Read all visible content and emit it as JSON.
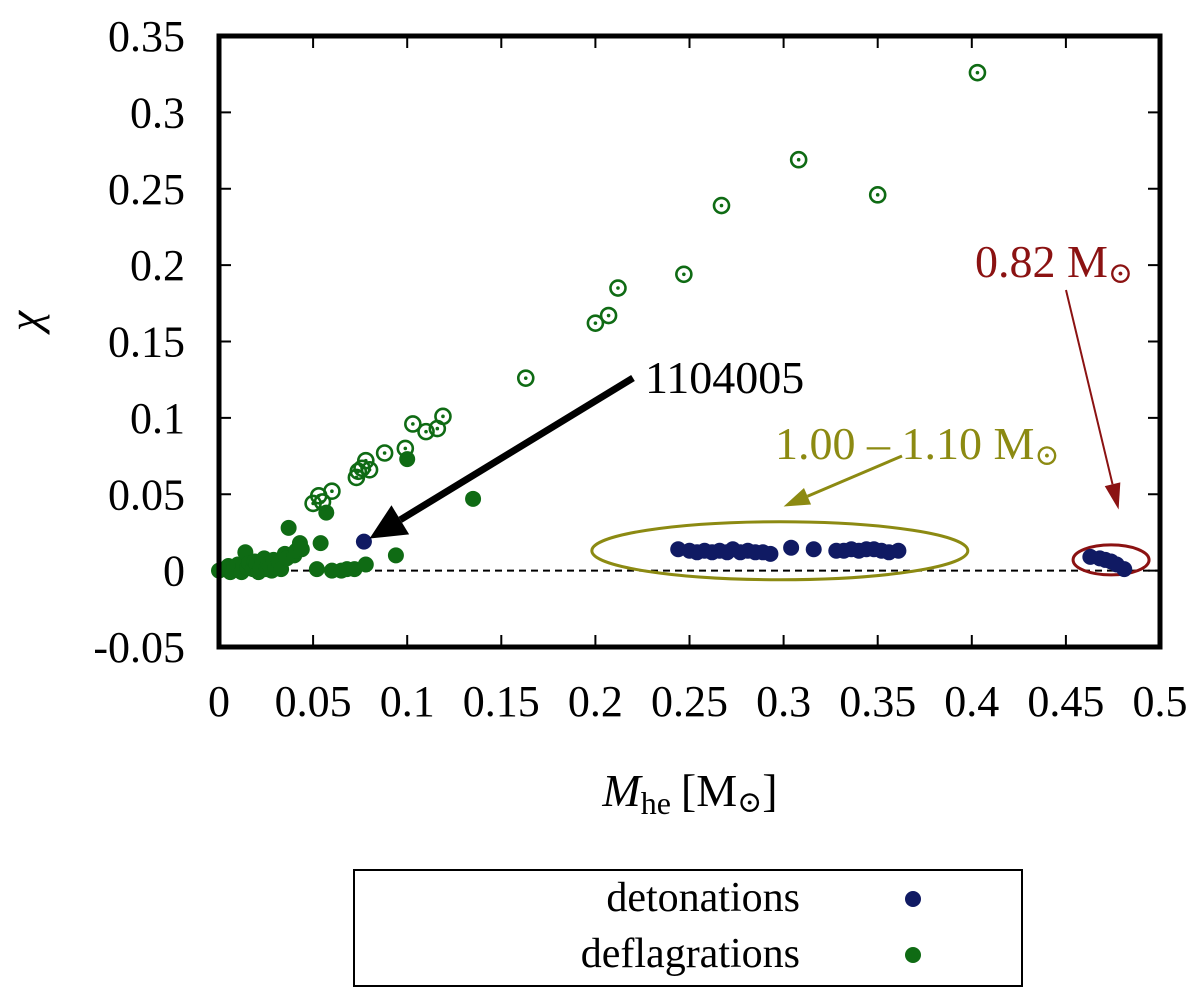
{
  "chart_data": {
    "type": "scatter",
    "title": "",
    "xlabel_main": "M",
    "xlabel_sub": "he",
    "xlabel_unit": "[M",
    "xlabel_sun": "⊙",
    "xlabel_close": "]",
    "ylabel": "χ",
    "xlim": [
      0,
      0.5
    ],
    "ylim": [
      -0.05,
      0.35
    ],
    "x_ticks": [
      0,
      0.05,
      0.1,
      0.15,
      0.2,
      0.25,
      0.3,
      0.35,
      0.4,
      0.45,
      0.5
    ],
    "x_tick_labels": [
      "0",
      "0.05",
      "0.1",
      "0.15",
      "0.2",
      "0.25",
      "0.3",
      "0.35",
      "0.4",
      "0.45",
      "0.5"
    ],
    "y_ticks": [
      -0.05,
      0,
      0.05,
      0.1,
      0.15,
      0.2,
      0.25,
      0.3,
      0.35
    ],
    "y_tick_labels": [
      "-0.05",
      "0",
      "0.05",
      "0.1",
      "0.15",
      "0.2",
      "0.25",
      "0.3",
      "0.35"
    ],
    "zero_line": true,
    "colors": {
      "detonations": "#101a63",
      "deflagrations": "#0f6b14",
      "range_annotation": "#8c8a12",
      "mass_annotation": "#8b1212",
      "arrow": "#000000"
    },
    "series": [
      {
        "name": "deflagrations",
        "marker": "filled",
        "points": [
          [
            0.0,
            0.0
          ],
          [
            0.003,
            0.001
          ],
          [
            0.005,
            0.003
          ],
          [
            0.006,
            -0.001
          ],
          [
            0.008,
            0.002
          ],
          [
            0.01,
            0.004
          ],
          [
            0.011,
            0.0
          ],
          [
            0.012,
            -0.001
          ],
          [
            0.013,
            0.003
          ],
          [
            0.014,
            0.012
          ],
          [
            0.015,
            0.002
          ],
          [
            0.016,
            0.005
          ],
          [
            0.018,
            0.001
          ],
          [
            0.019,
            0.006
          ],
          [
            0.02,
            0.004
          ],
          [
            0.021,
            -0.001
          ],
          [
            0.022,
            0.002
          ],
          [
            0.023,
            0.006
          ],
          [
            0.024,
            0.008
          ],
          [
            0.025,
            0.001
          ],
          [
            0.026,
            0.004
          ],
          [
            0.027,
            0.003
          ],
          [
            0.028,
            0.0
          ],
          [
            0.029,
            0.007
          ],
          [
            0.03,
            0.002
          ],
          [
            0.032,
            0.005
          ],
          [
            0.033,
            0.001
          ],
          [
            0.035,
            0.011
          ],
          [
            0.036,
            0.008
          ],
          [
            0.037,
            0.028
          ],
          [
            0.04,
            0.01
          ],
          [
            0.041,
            0.013
          ],
          [
            0.043,
            0.018
          ],
          [
            0.044,
            0.014
          ],
          [
            0.052,
            0.001
          ],
          [
            0.054,
            0.018
          ],
          [
            0.057,
            0.038
          ],
          [
            0.06,
            0.0
          ],
          [
            0.065,
            0.0
          ],
          [
            0.068,
            0.001
          ],
          [
            0.072,
            0.001
          ],
          [
            0.078,
            0.004
          ],
          [
            0.094,
            0.01
          ],
          [
            0.1,
            0.073
          ],
          [
            0.135,
            0.047
          ]
        ]
      },
      {
        "name": "deflagrations (open)",
        "marker": "ring",
        "points": [
          [
            0.05,
            0.044
          ],
          [
            0.053,
            0.049
          ],
          [
            0.055,
            0.045
          ],
          [
            0.06,
            0.052
          ],
          [
            0.073,
            0.061
          ],
          [
            0.074,
            0.065
          ],
          [
            0.076,
            0.067
          ],
          [
            0.078,
            0.072
          ],
          [
            0.08,
            0.066
          ],
          [
            0.088,
            0.077
          ],
          [
            0.099,
            0.08
          ],
          [
            0.103,
            0.096
          ],
          [
            0.11,
            0.091
          ],
          [
            0.116,
            0.093
          ],
          [
            0.119,
            0.101
          ],
          [
            0.163,
            0.126
          ],
          [
            0.2,
            0.162
          ],
          [
            0.207,
            0.167
          ],
          [
            0.212,
            0.185
          ],
          [
            0.247,
            0.194
          ],
          [
            0.267,
            0.239
          ],
          [
            0.308,
            0.269
          ],
          [
            0.35,
            0.246
          ],
          [
            0.403,
            0.326
          ]
        ]
      },
      {
        "name": "detonations",
        "marker": "filled",
        "points": [
          [
            0.077,
            0.019
          ],
          [
            0.244,
            0.014
          ],
          [
            0.25,
            0.013
          ],
          [
            0.254,
            0.012
          ],
          [
            0.258,
            0.013
          ],
          [
            0.262,
            0.012
          ],
          [
            0.266,
            0.013
          ],
          [
            0.27,
            0.012
          ],
          [
            0.273,
            0.014
          ],
          [
            0.277,
            0.012
          ],
          [
            0.281,
            0.013
          ],
          [
            0.285,
            0.012
          ],
          [
            0.289,
            0.012
          ],
          [
            0.293,
            0.011
          ],
          [
            0.304,
            0.015
          ],
          [
            0.316,
            0.014
          ],
          [
            0.328,
            0.013
          ],
          [
            0.332,
            0.013
          ],
          [
            0.336,
            0.014
          ],
          [
            0.34,
            0.013
          ],
          [
            0.344,
            0.014
          ],
          [
            0.348,
            0.014
          ],
          [
            0.352,
            0.013
          ],
          [
            0.356,
            0.012
          ],
          [
            0.361,
            0.013
          ],
          [
            0.463,
            0.009
          ],
          [
            0.468,
            0.008
          ],
          [
            0.471,
            0.007
          ],
          [
            0.474,
            0.006
          ],
          [
            0.477,
            0.004
          ],
          [
            0.481,
            0.001
          ]
        ]
      }
    ],
    "annotations": [
      {
        "text": "1104005",
        "target": [
          0.08,
          0.021
        ],
        "color": "arrow"
      },
      {
        "text": "1.00 – 1.10 M",
        "sun": "⊙",
        "target": [
          0.3,
          0.042
        ],
        "ellipse_center": [
          0.298,
          0.013
        ],
        "color": "range_annotation"
      },
      {
        "text": "0.82 M",
        "sun": "⊙",
        "target": [
          0.478,
          0.04
        ],
        "ellipse_center": [
          0.474,
          0.007
        ],
        "color": "mass_annotation"
      }
    ],
    "legend": {
      "position": "bottom-center",
      "entries": [
        {
          "label": "detonations",
          "series": "detonations"
        },
        {
          "label": "deflagrations",
          "series": "deflagrations"
        }
      ]
    }
  }
}
